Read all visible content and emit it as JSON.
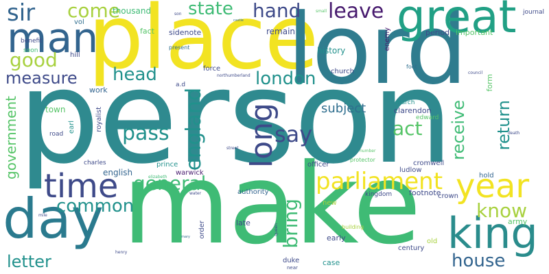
{
  "palette": {
    "yellow": "#f2e322",
    "lime": "#a8d13f",
    "green": "#55c467",
    "emerald": "#3fbb75",
    "teal": "#21918c",
    "slate": "#2f6e8e",
    "indigo": "#3e4a89",
    "purple": "#471a6e"
  },
  "words": [
    {
      "id": "person",
      "text": "person"
    },
    {
      "id": "make",
      "text": "make"
    },
    {
      "id": "place",
      "text": "place"
    },
    {
      "id": "lord",
      "text": "lord"
    },
    {
      "id": "great",
      "text": "great"
    },
    {
      "id": "man",
      "text": "man"
    },
    {
      "id": "day",
      "text": "day"
    },
    {
      "id": "king",
      "text": "king"
    },
    {
      "id": "time",
      "text": "time"
    },
    {
      "id": "year",
      "text": "year"
    },
    {
      "id": "long",
      "text": "long"
    },
    {
      "id": "parliament",
      "text": "parliament"
    },
    {
      "id": "come",
      "text": "come"
    },
    {
      "id": "sir",
      "text": "sir"
    },
    {
      "id": "hand",
      "text": "hand"
    },
    {
      "id": "leave",
      "text": "leave"
    },
    {
      "id": "state",
      "text": "state"
    },
    {
      "id": "good",
      "text": "good"
    },
    {
      "id": "measure",
      "text": "measure"
    },
    {
      "id": "head",
      "text": "head"
    },
    {
      "id": "london",
      "text": "london"
    },
    {
      "id": "england",
      "text": "england"
    },
    {
      "id": "pass",
      "text": "pass"
    },
    {
      "id": "say",
      "text": "say"
    },
    {
      "id": "general",
      "text": "general"
    },
    {
      "id": "common",
      "text": "common"
    },
    {
      "id": "government",
      "text": "government"
    },
    {
      "id": "house",
      "text": "house"
    },
    {
      "id": "letter",
      "text": "letter"
    },
    {
      "id": "know",
      "text": "know"
    },
    {
      "id": "bring",
      "text": "bring"
    },
    {
      "id": "act",
      "text": "act"
    },
    {
      "id": "receive",
      "text": "receive"
    },
    {
      "id": "return",
      "text": "return"
    },
    {
      "id": "subject",
      "text": "subject"
    },
    {
      "id": "thousand",
      "text": "thousand"
    },
    {
      "id": "fact",
      "text": "fact"
    },
    {
      "id": "sidenote",
      "text": "sidenote"
    },
    {
      "id": "remain",
      "text": "remain"
    },
    {
      "id": "history",
      "text": "history"
    },
    {
      "id": "period",
      "text": "period"
    },
    {
      "id": "important",
      "text": "important"
    },
    {
      "id": "journal",
      "text": "journal"
    },
    {
      "id": "enemy",
      "text": "enemy"
    },
    {
      "id": "benefit",
      "text": "benefit"
    },
    {
      "id": "vol",
      "text": "vol"
    },
    {
      "id": "soon",
      "text": "soon"
    },
    {
      "id": "hill",
      "text": "hill"
    },
    {
      "id": "present",
      "text": "present"
    },
    {
      "id": "force",
      "text": "force"
    },
    {
      "id": "church",
      "text": "church"
    },
    {
      "id": "foot",
      "text": "foot"
    },
    {
      "id": "work",
      "text": "work"
    },
    {
      "id": "town",
      "text": "town"
    },
    {
      "id": "royalist",
      "text": "royalist"
    },
    {
      "id": "earl",
      "text": "earl"
    },
    {
      "id": "road",
      "text": "road"
    },
    {
      "id": "charles",
      "text": "charles"
    },
    {
      "id": "english",
      "text": "english"
    },
    {
      "id": "prince",
      "text": "prince"
    },
    {
      "id": "warwick",
      "text": "warwick"
    },
    {
      "id": "march",
      "text": "march"
    },
    {
      "id": "clarendon",
      "text": "clarendon"
    },
    {
      "id": "edward",
      "text": "edward"
    },
    {
      "id": "cromwell",
      "text": "cromwell"
    },
    {
      "id": "officer",
      "text": "officer"
    },
    {
      "id": "protector",
      "text": "protector"
    },
    {
      "id": "ludlow",
      "text": "ludlow"
    },
    {
      "id": "hold",
      "text": "hold"
    },
    {
      "id": "form",
      "text": "form"
    },
    {
      "id": "army",
      "text": "army"
    },
    {
      "id": "kingdom",
      "text": "kingdom"
    },
    {
      "id": "footnote",
      "text": "footnote"
    },
    {
      "id": "crown",
      "text": "crown"
    },
    {
      "id": "authority",
      "text": "authority"
    },
    {
      "id": "new",
      "text": "new"
    },
    {
      "id": "late",
      "text": "late"
    },
    {
      "id": "early",
      "text": "early"
    },
    {
      "id": "order",
      "text": "order"
    },
    {
      "id": "duke",
      "text": "duke"
    },
    {
      "id": "case",
      "text": "case"
    },
    {
      "id": "century",
      "text": "century"
    },
    {
      "id": "old",
      "text": "old"
    },
    {
      "id": "building",
      "text": "building"
    },
    {
      "id": "northumberland",
      "text": "northumberland"
    },
    {
      "id": "number",
      "text": "number"
    },
    {
      "id": "council",
      "text": "council"
    },
    {
      "id": "elizabeth",
      "text": "elizabeth"
    },
    {
      "id": "water",
      "text": "water"
    },
    {
      "id": "henry",
      "text": "henry"
    },
    {
      "id": "mile",
      "text": "mile"
    },
    {
      "id": "mary",
      "text": "mary"
    },
    {
      "id": "street",
      "text": "street"
    },
    {
      "id": "death",
      "text": "death"
    },
    {
      "id": "son",
      "text": "son"
    },
    {
      "id": "small",
      "text": "small"
    },
    {
      "id": "castle",
      "text": "castle"
    },
    {
      "id": "queen",
      "text": "queen"
    },
    {
      "id": "near",
      "text": "near"
    },
    {
      "id": "ad",
      "text": "a.d"
    }
  ]
}
